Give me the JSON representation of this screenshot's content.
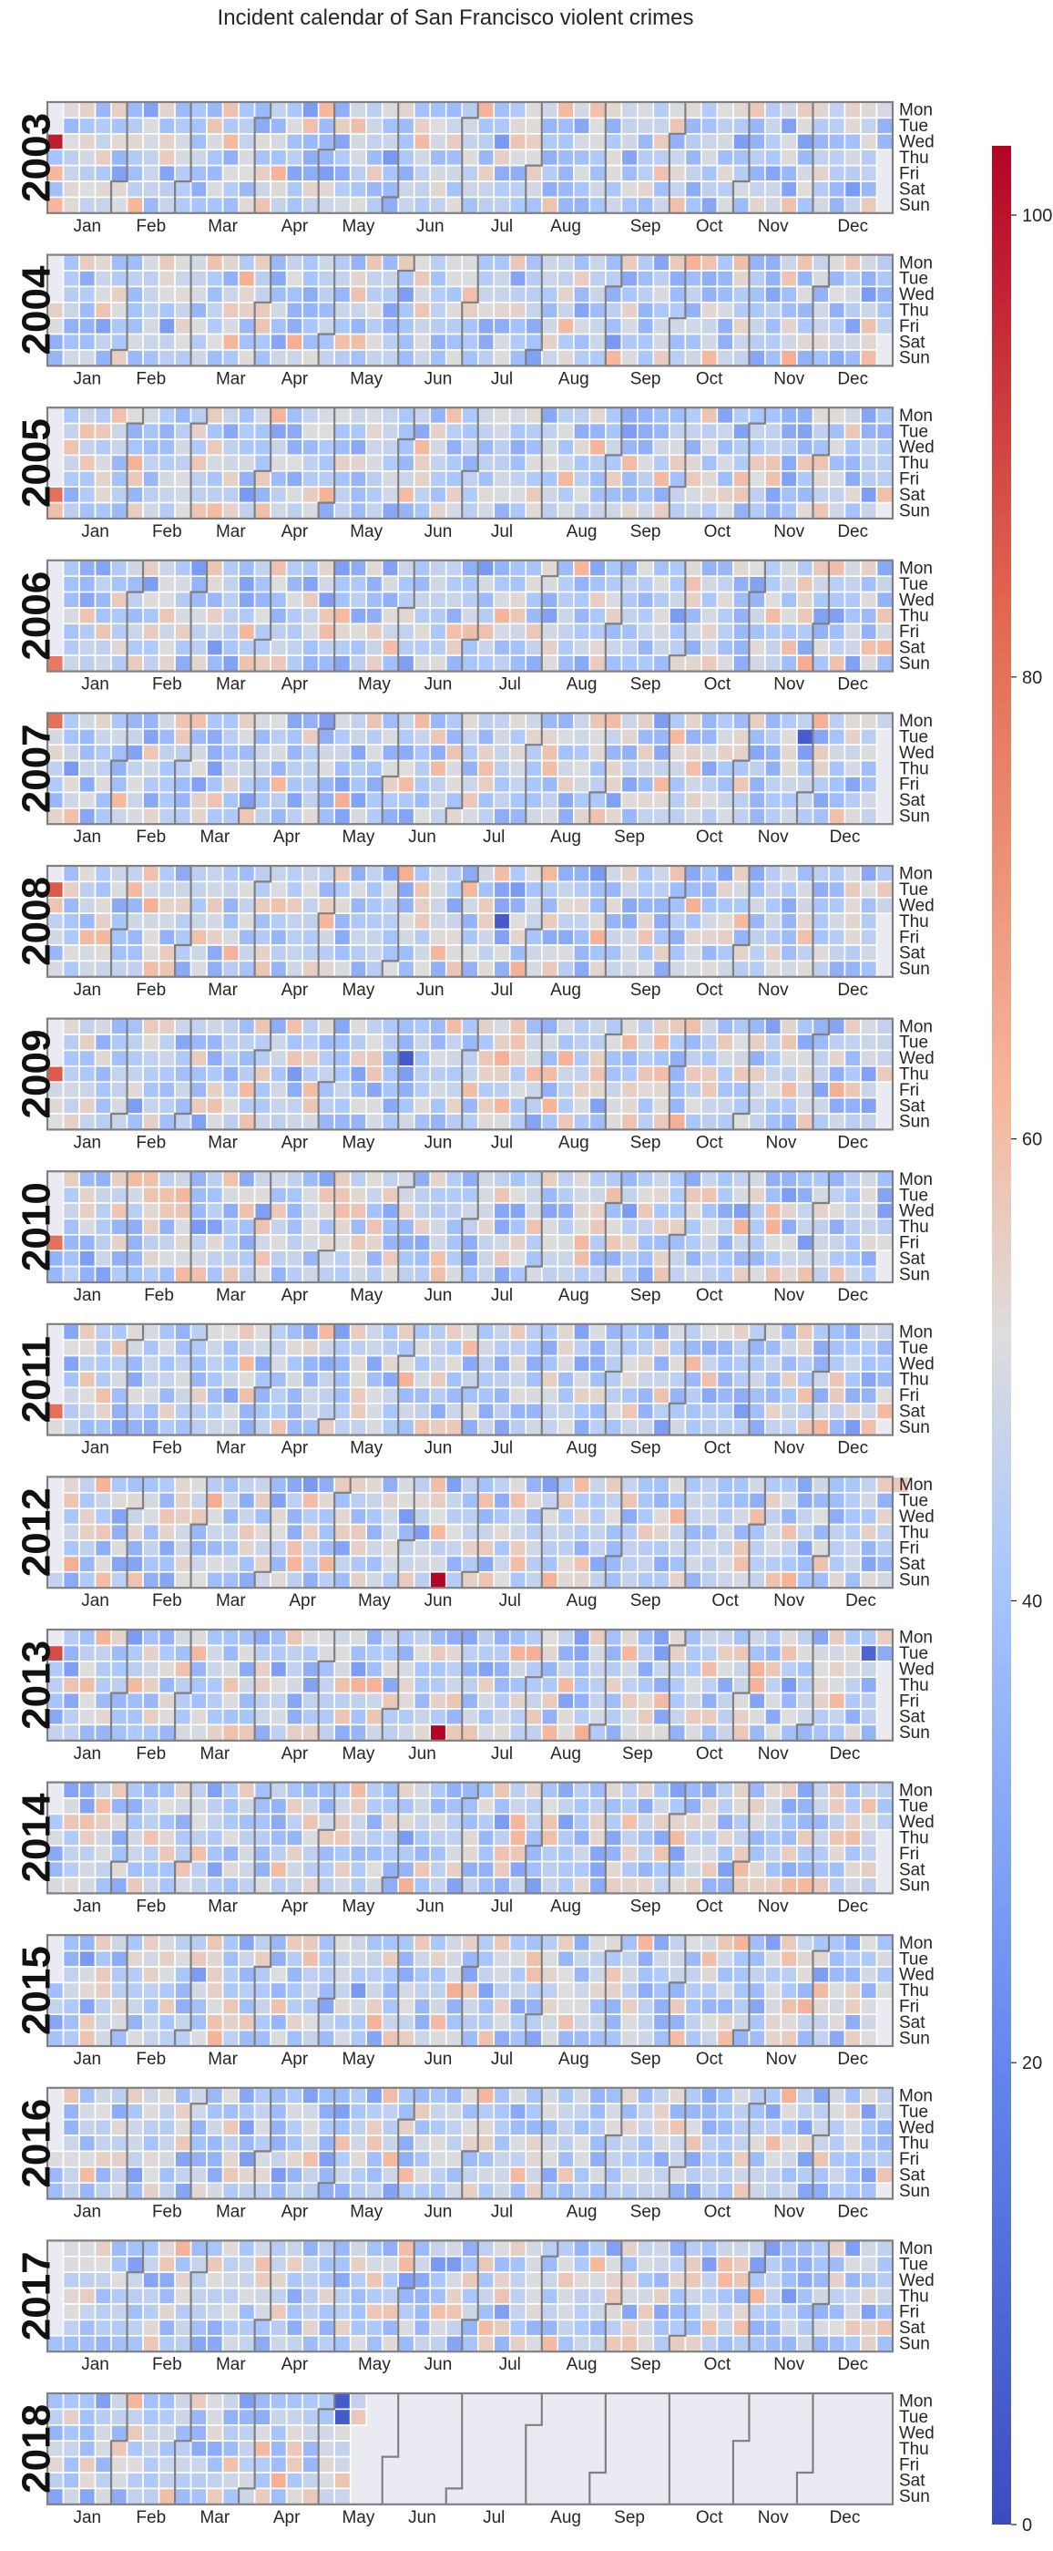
{
  "chart_data": {
    "type": "heatmap",
    "title": "Incident calendar of San Francisco violent crimes",
    "years": [
      "2003",
      "2004",
      "2005",
      "2006",
      "2007",
      "2008",
      "2009",
      "2010",
      "2011",
      "2012",
      "2013",
      "2014",
      "2015",
      "2016",
      "2017",
      "2018"
    ],
    "month_labels": [
      "Jan",
      "Feb",
      "Mar",
      "Apr",
      "May",
      "Jun",
      "Jul",
      "Aug",
      "Sep",
      "Oct",
      "Nov",
      "Dec"
    ],
    "weekday_labels": [
      "Mon",
      "Tue",
      "Wed",
      "Thu",
      "Fri",
      "Sat",
      "Sun"
    ],
    "colorbar": {
      "min": 0,
      "max": 103,
      "ticks": [
        0,
        20,
        40,
        60,
        80,
        100
      ]
    },
    "colormap": "coolwarm",
    "colors": {
      "low": "#3b4cc0",
      "mid": "#dddddd",
      "high": "#b40426",
      "empty": "#eaeaf2",
      "border": "#808080"
    },
    "value_summary": {
      "typical_daily_range": [
        25,
        65
      ],
      "typical_mean": 45
    },
    "last_day_with_data": "2018-05-15",
    "notable_days": [
      {
        "date": "2003-01-01",
        "value": 98
      },
      {
        "date": "2004-01-01",
        "value": 55
      },
      {
        "date": "2005-01-01",
        "value": 80
      },
      {
        "date": "2006-01-01",
        "value": 78
      },
      {
        "date": "2007-01-01",
        "value": 80
      },
      {
        "date": "2007-11-27",
        "value": 6
      },
      {
        "date": "2008-01-01",
        "value": 85
      },
      {
        "date": "2008-07-17",
        "value": 5
      },
      {
        "date": "2009-01-01",
        "value": 85
      },
      {
        "date": "2009-06-03",
        "value": 5
      },
      {
        "date": "2010-01-01",
        "value": 80
      },
      {
        "date": "2011-01-01",
        "value": 80
      },
      {
        "date": "2012-06-17",
        "value": 103
      },
      {
        "date": "2013-01-01",
        "value": 88
      },
      {
        "date": "2013-06-23",
        "value": 103
      },
      {
        "date": "2013-12-24",
        "value": 8
      },
      {
        "date": "2018-05-07",
        "value": 5
      },
      {
        "date": "2018-05-08",
        "value": 5
      }
    ]
  }
}
